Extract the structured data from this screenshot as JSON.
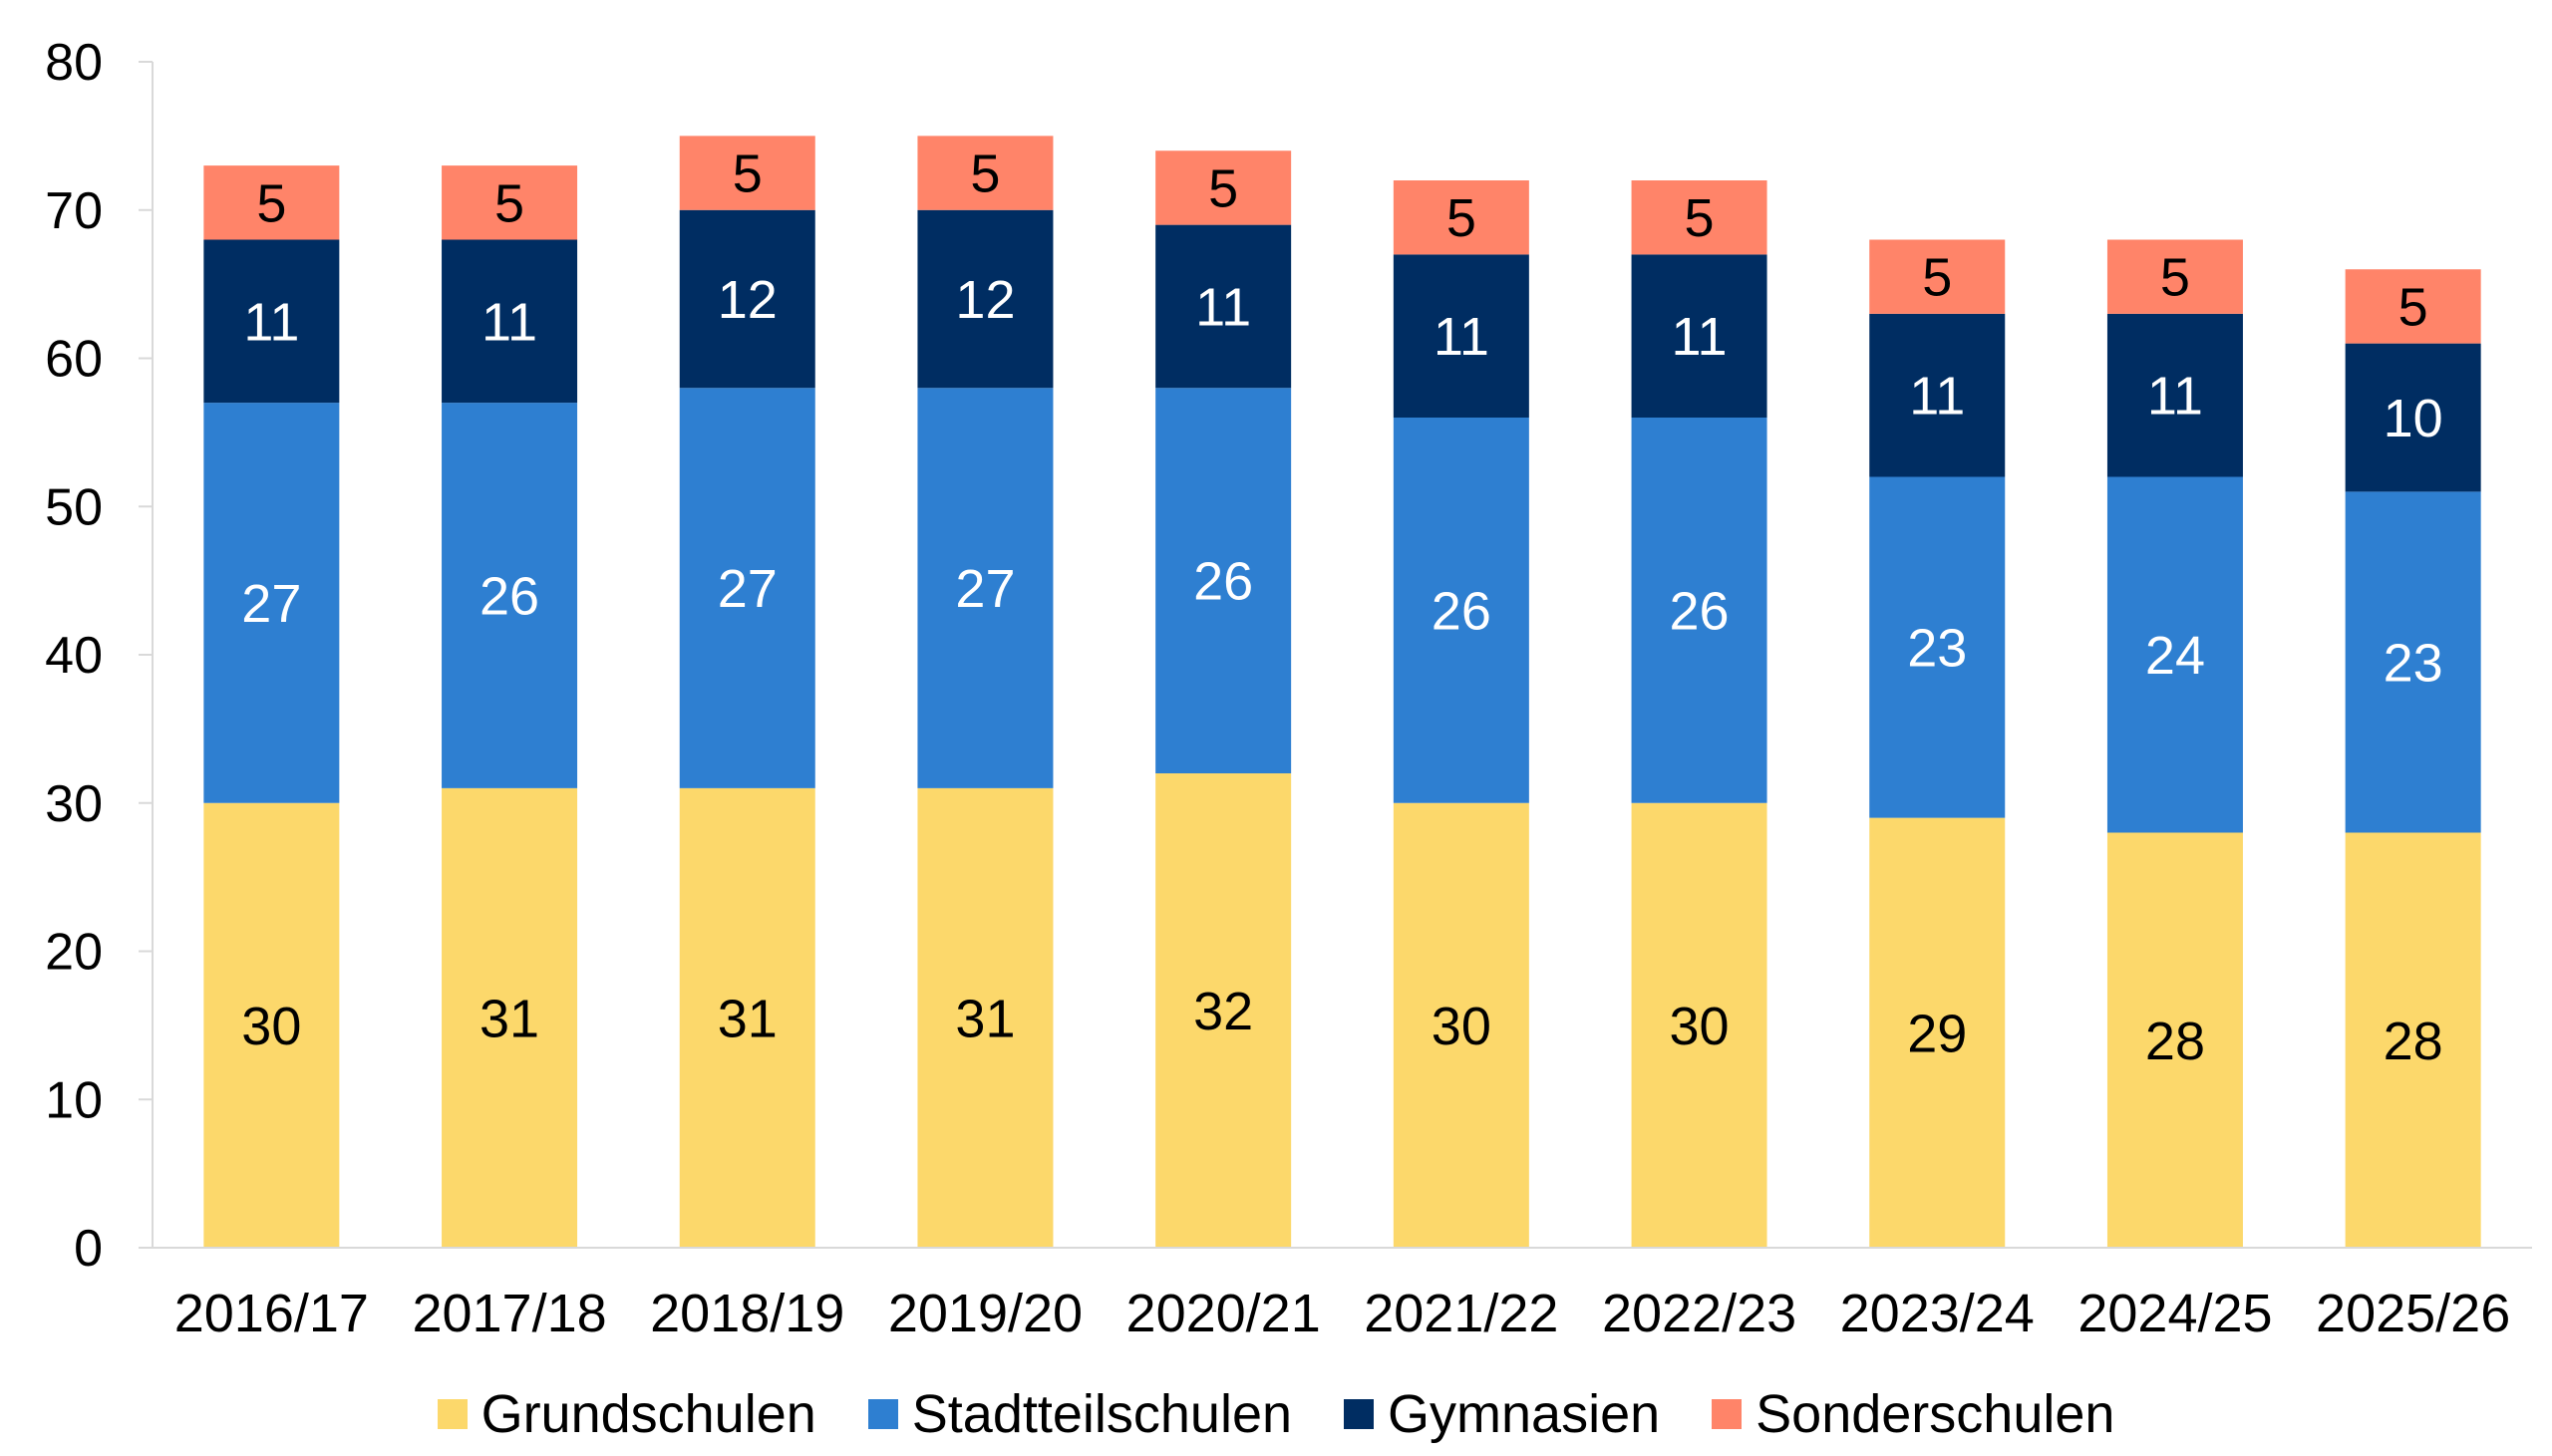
{
  "chart_data": {
    "type": "bar",
    "stacked": true,
    "title": "",
    "xlabel": "",
    "ylabel": "",
    "ylim": [
      0,
      80
    ],
    "yticks": [
      0,
      10,
      20,
      30,
      40,
      50,
      60,
      70,
      80
    ],
    "grid": false,
    "legend_position": "bottom",
    "categories": [
      "2016/17",
      "2017/18",
      "2018/19",
      "2019/20",
      "2020/21",
      "2021/22",
      "2022/23",
      "2023/24",
      "2024/25",
      "2025/26"
    ],
    "series": [
      {
        "name": "Grundschulen",
        "color": "#FCD86B",
        "label_color": "#000000",
        "values": [
          30,
          31,
          31,
          31,
          32,
          30,
          30,
          29,
          28,
          28
        ]
      },
      {
        "name": "Stadtteilschulen",
        "color": "#2E7FD1",
        "label_color": "#FFFFFF",
        "values": [
          27,
          26,
          27,
          27,
          26,
          26,
          26,
          23,
          24,
          23
        ]
      },
      {
        "name": "Gymnasien",
        "color": "#002D62",
        "label_color": "#FFFFFF",
        "values": [
          11,
          11,
          12,
          12,
          11,
          11,
          11,
          11,
          11,
          10
        ]
      },
      {
        "name": "Sonderschulen",
        "color": "#FF8469",
        "label_color": "#000000",
        "values": [
          5,
          5,
          5,
          5,
          5,
          5,
          5,
          5,
          5,
          5
        ]
      }
    ]
  }
}
